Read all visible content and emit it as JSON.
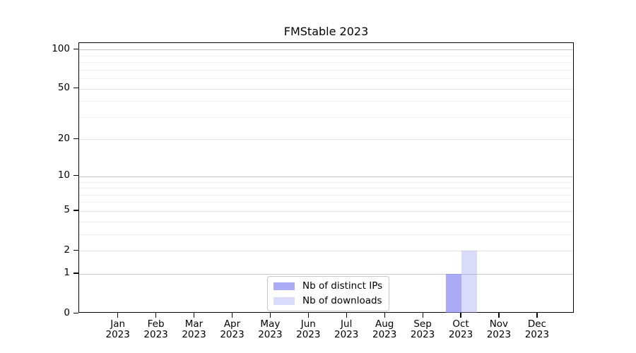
{
  "chart_data": {
    "type": "bar",
    "title": "FMStable 2023",
    "categories": [
      "Jan",
      "Feb",
      "Mar",
      "Apr",
      "May",
      "Jun",
      "Jul",
      "Aug",
      "Sep",
      "Oct",
      "Nov",
      "Dec"
    ],
    "category_year": "2023",
    "series": [
      {
        "name": "Nb of distinct IPs",
        "color": "rgba(125,125,240,0.65)",
        "color_hex": "#aaaaf5",
        "values": [
          0,
          0,
          0,
          0,
          0,
          0,
          0,
          0,
          0,
          1,
          0,
          0
        ]
      },
      {
        "name": "Nb of downloads",
        "color": "rgba(150,150,240,0.35)",
        "color_hex": "#dadaf9",
        "values": [
          0,
          0,
          0,
          0,
          0,
          0,
          0,
          0,
          0,
          2,
          0,
          0
        ]
      }
    ],
    "xlabel": "",
    "ylabel": "",
    "y_axis": {
      "scale": "log1p",
      "max": 112,
      "labeled_ticks": [
        0,
        1,
        2,
        5,
        10,
        20,
        50,
        100
      ],
      "decade_ticks": [
        1,
        10,
        100
      ],
      "minor_gridlines": [
        3,
        4,
        6,
        7,
        8,
        9,
        30,
        40,
        60,
        70,
        80,
        90
      ]
    },
    "grid": true,
    "legend_position": "lower center"
  }
}
